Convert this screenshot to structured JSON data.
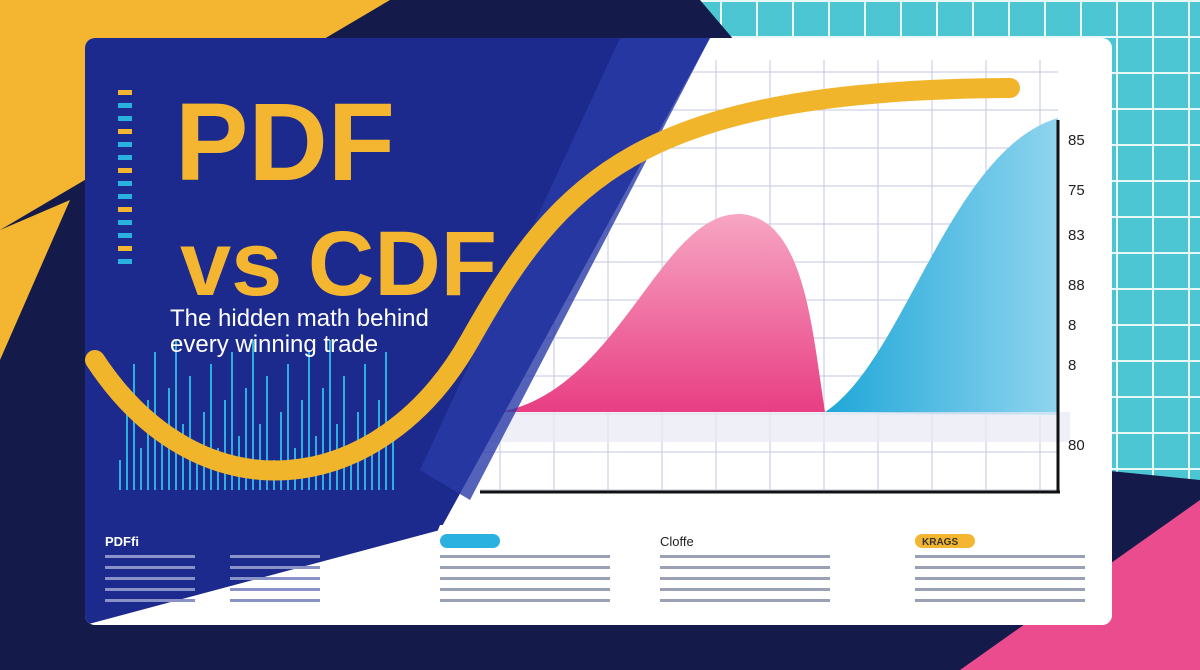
{
  "header": {
    "title_line1": "PDF",
    "title_line2": "vs CDF",
    "subtitle_line1": "The hidden math behind",
    "subtitle_line2": "every winning trade"
  },
  "axis": {
    "labels": [
      "85",
      "75",
      "83",
      "88",
      "8",
      "8",
      "80"
    ]
  },
  "footer": {
    "sections": [
      "PDFfi",
      "Cloffe",
      "KRAGS"
    ]
  }
}
